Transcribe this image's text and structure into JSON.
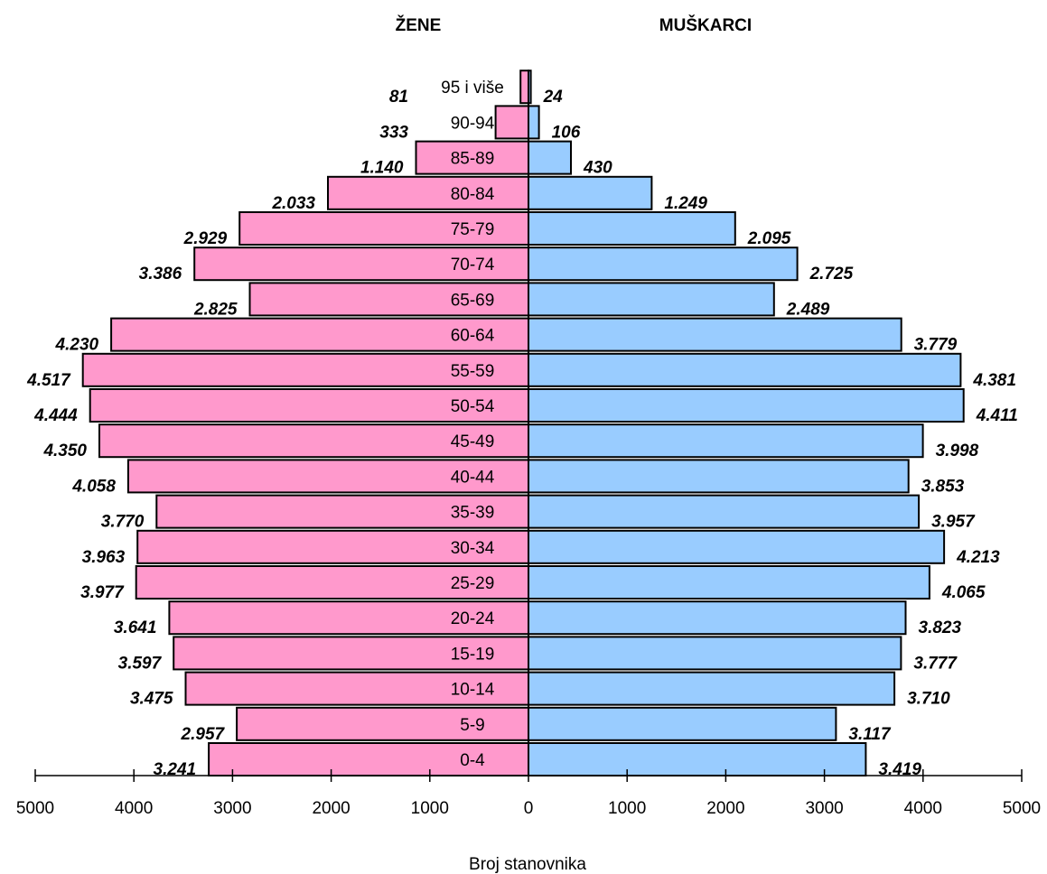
{
  "chart_data": {
    "type": "bar",
    "orientation": "horizontal",
    "layout": "population-pyramid",
    "categories": [
      "0-4",
      "5-9",
      "10-14",
      "15-19",
      "20-24",
      "25-29",
      "30-34",
      "35-39",
      "40-44",
      "45-49",
      "50-54",
      "55-59",
      "60-64",
      "65-69",
      "70-74",
      "75-79",
      "80-84",
      "85-89",
      "90-94",
      "95 i više"
    ],
    "series": [
      {
        "name": "ŽENE",
        "side": "left",
        "color": "#ff99cc",
        "values": [
          3241,
          2957,
          3475,
          3597,
          3641,
          3977,
          3963,
          3770,
          4058,
          4350,
          4444,
          4517,
          4230,
          2825,
          3386,
          2929,
          2033,
          1140,
          333,
          81
        ],
        "labels": [
          "3.241",
          "2.957",
          "3.475",
          "3.597",
          "3.641",
          "3.977",
          "3.963",
          "3.770",
          "4.058",
          "4.350",
          "4.444",
          "4.517",
          "4.230",
          "2.825",
          "3.386",
          "2.929",
          "2.033",
          "1.140",
          "333",
          "81"
        ]
      },
      {
        "name": "MUŠKARCI",
        "side": "right",
        "color": "#99ccff",
        "values": [
          3419,
          3117,
          3710,
          3777,
          3823,
          4065,
          4213,
          3957,
          3853,
          3998,
          4411,
          4381,
          3779,
          2489,
          2725,
          2095,
          1249,
          430,
          106,
          24
        ],
        "labels": [
          "3.419",
          "3.117",
          "3.710",
          "3.777",
          "3.823",
          "4.065",
          "4.213",
          "3.957",
          "3.853",
          "3.998",
          "4.411",
          "4.381",
          "3.779",
          "2.489",
          "2.725",
          "2.095",
          "1.249",
          "430",
          "106",
          "24"
        ]
      }
    ],
    "xlabel": "Broj stanovnika",
    "xlim": [
      -5000,
      5000
    ],
    "x_ticks": [
      -5000,
      -4000,
      -3000,
      -2000,
      -1000,
      0,
      1000,
      2000,
      3000,
      4000,
      5000
    ],
    "x_tick_labels": [
      "5000",
      "4000",
      "3000",
      "2000",
      "1000",
      "0",
      "1000",
      "2000",
      "3000",
      "4000",
      "5000"
    ],
    "grid": false,
    "legend": "none",
    "bar_outline_color": "#000000"
  }
}
